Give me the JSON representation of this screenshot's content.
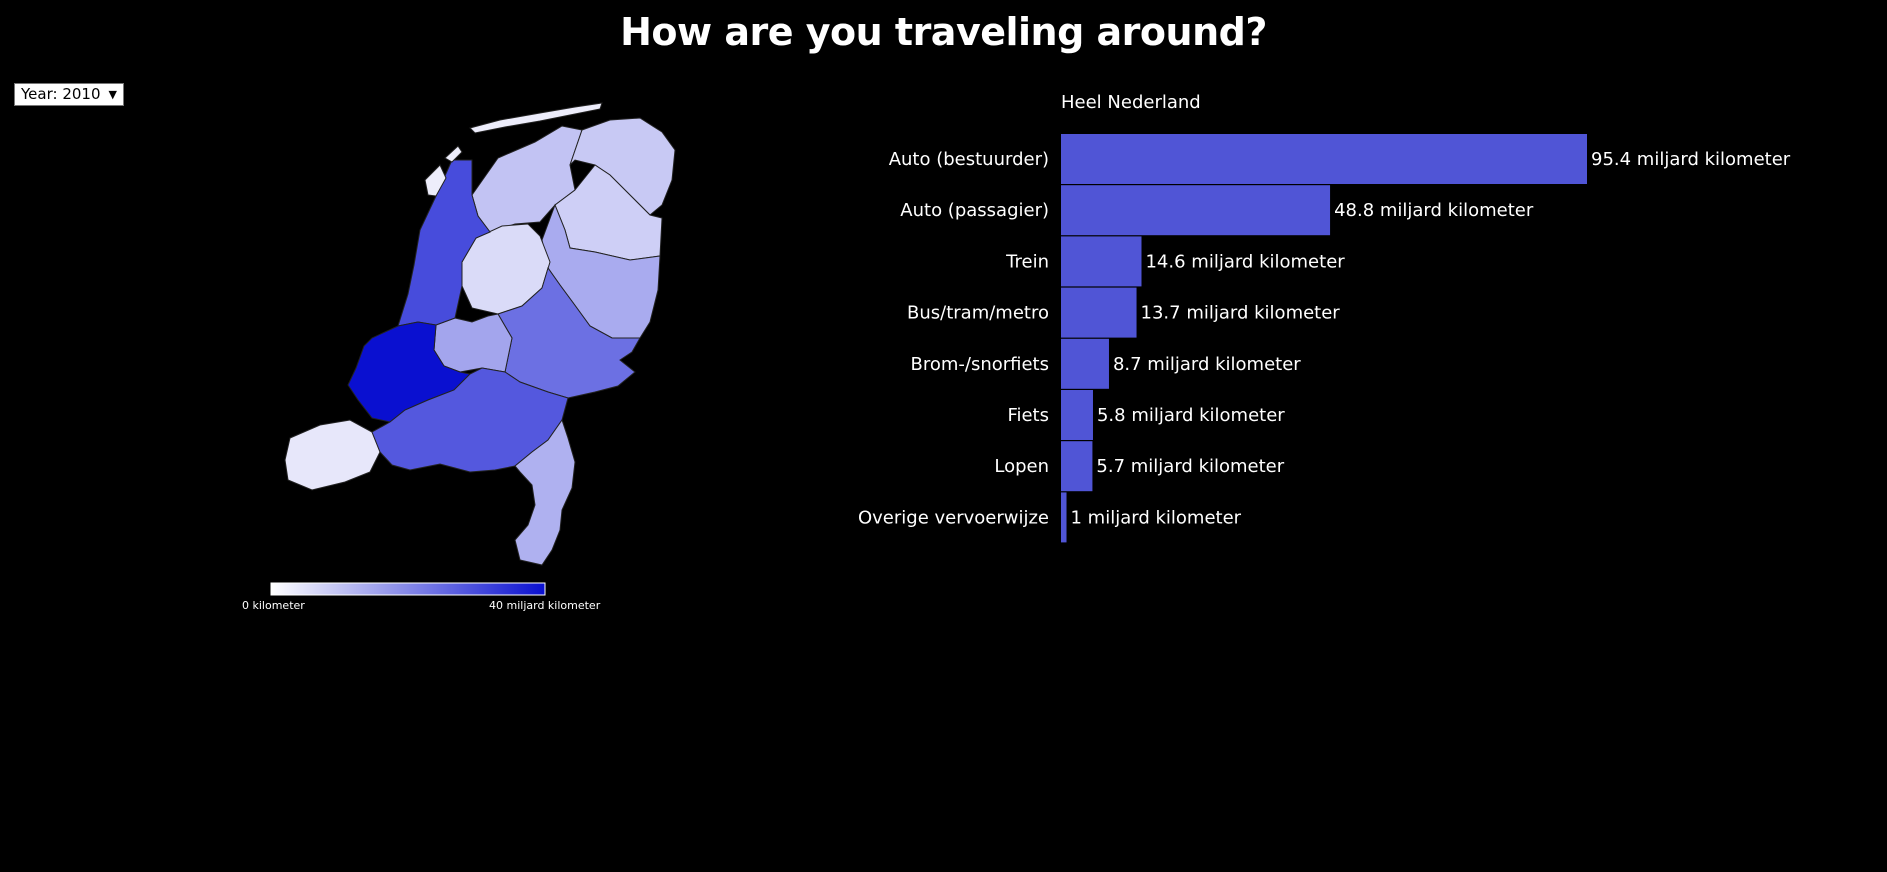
{
  "title": "How are you traveling around?",
  "year_select": {
    "prefix": "Year:",
    "value": "2010"
  },
  "colors": {
    "background": "#000000",
    "bar": "#5055d6",
    "scale_low": "#ffffff",
    "scale_high": "#0a10d0"
  },
  "map": {
    "legend_min_label": "0 kilometer",
    "legend_max_label": "40 miljard kilometer",
    "legend_range": [
      0,
      40
    ],
    "regions": [
      {
        "id": "friesland",
        "value": 10
      },
      {
        "id": "groningen",
        "value": 9
      },
      {
        "id": "drenthe",
        "value": 8
      },
      {
        "id": "overijssel",
        "value": 14
      },
      {
        "id": "flevoland",
        "value": 6
      },
      {
        "id": "gelderland",
        "value": 24
      },
      {
        "id": "utrecht",
        "value": 15
      },
      {
        "id": "noord-holland",
        "value": 30
      },
      {
        "id": "zuid-holland",
        "value": 40
      },
      {
        "id": "zeeland",
        "value": 4
      },
      {
        "id": "noord-brabant",
        "value": 28
      },
      {
        "id": "limburg",
        "value": 13
      },
      {
        "id": "wadden",
        "value": 3
      }
    ]
  },
  "chart_data": {
    "type": "bar",
    "orientation": "horizontal",
    "title": "Heel Nederland",
    "categories": [
      "Auto (bestuurder)",
      "Auto (passagier)",
      "Trein",
      "Bus/tram/metro",
      "Brom-/snorfiets",
      "Fiets",
      "Lopen",
      "Overige vervoerwijze"
    ],
    "values": [
      95.4,
      48.8,
      14.6,
      13.7,
      8.7,
      5.8,
      5.7,
      1
    ],
    "value_labels": [
      "95.4 miljard kilometer",
      "48.8 miljard kilometer",
      "14.6 miljard kilometer",
      "13.7 miljard kilometer",
      "8.7 miljard kilometer",
      "5.8 miljard kilometer",
      "5.7 miljard kilometer",
      "1 miljard kilometer"
    ],
    "grid": false,
    "legend": "none"
  }
}
